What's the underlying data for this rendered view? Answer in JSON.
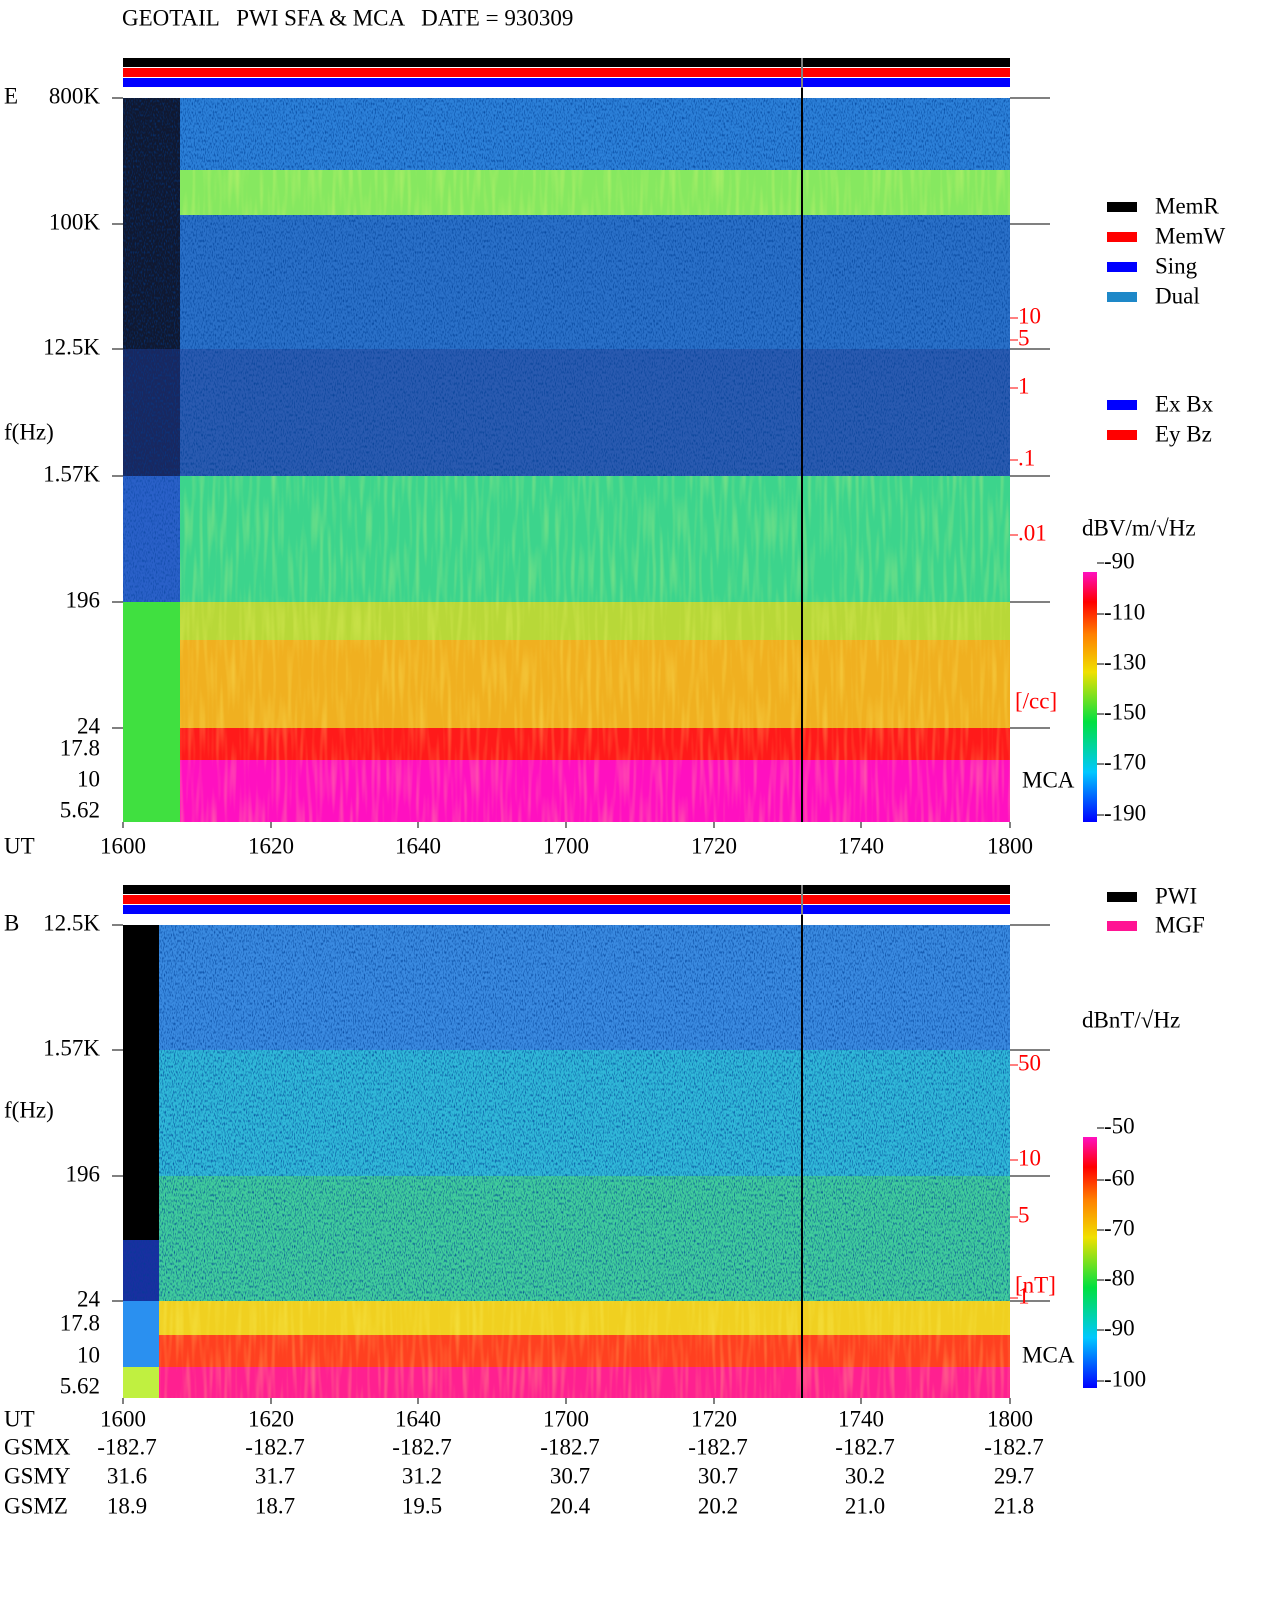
{
  "header": {
    "title": "GEOTAIL   PWI SFA & MCA   DATE = 930309"
  },
  "panels": [
    {
      "label": "E",
      "y_label": "f(Hz)",
      "freq_ticks": [
        "800K",
        "100K",
        "12.5K",
        "1.57K",
        "196",
        "24",
        "17.8",
        "10",
        "5.62"
      ],
      "time_label": "UT",
      "time_ticks": [
        "1600",
        "1620",
        "1640",
        "1700",
        "1720",
        "1740",
        "1800"
      ],
      "density_ticks": [
        "10",
        "5",
        "1",
        ".1",
        ".01"
      ],
      "density_unit": "[/cc]",
      "mca_label": "MCA",
      "colorbar": {
        "unit": "dBV/m/√Hz",
        "ticks": [
          "-90",
          "-110",
          "-130",
          "-150",
          "-170",
          "-190"
        ]
      },
      "legend": [
        {
          "name": "MemR",
          "color": "#000000"
        },
        {
          "name": "MemW",
          "color": "#ff0000"
        },
        {
          "name": "Sing",
          "color": "#0000ff"
        },
        {
          "name": "Dual",
          "color": "#1e88c8"
        },
        {
          "name": "Ex Bx",
          "color": "#0000ff"
        },
        {
          "name": "Ey Bz",
          "color": "#ff0000"
        }
      ]
    },
    {
      "label": "B",
      "y_label": "f(Hz)",
      "freq_ticks": [
        "12.5K",
        "1.57K",
        "196",
        "24",
        "17.8",
        "10",
        "5.62"
      ],
      "time_label": "UT",
      "time_ticks": [
        "1600",
        "1620",
        "1640",
        "1700",
        "1720",
        "1740",
        "1800"
      ],
      "density_ticks": [
        "50",
        "10",
        "5",
        "1"
      ],
      "density_unit": "[nT]",
      "mca_label": "MCA",
      "colorbar": {
        "unit": "dBnT/√Hz",
        "ticks": [
          "-50",
          "-60",
          "-70",
          "-80",
          "-90",
          "-100"
        ]
      },
      "legend": [
        {
          "name": "PWI",
          "color": "#000000"
        },
        {
          "name": "MGF",
          "color": "#ff1493"
        }
      ]
    }
  ],
  "coordinates": {
    "rows": [
      {
        "label": "GSMX",
        "values": [
          "-182.7",
          "-182.7",
          "-182.7",
          "-182.7",
          "-182.7",
          "-182.7",
          "-182.7"
        ]
      },
      {
        "label": "GSMY",
        "values": [
          "31.6",
          "31.7",
          "31.2",
          "30.7",
          "30.7",
          "30.2",
          "29.7"
        ]
      },
      {
        "label": "GSMZ",
        "values": [
          "18.9",
          "18.7",
          "19.5",
          "20.4",
          "20.2",
          "21.0",
          "21.8"
        ]
      }
    ]
  }
}
